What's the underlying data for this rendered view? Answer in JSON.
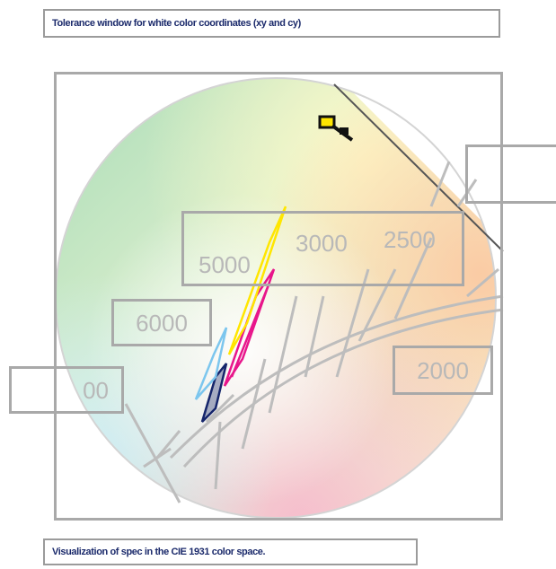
{
  "captions": {
    "top": "Tolerance window for white color coordinates (xy and cy)",
    "bottom": "Visualization of spec in the CIE 1931 color space."
  },
  "cct_labels": {
    "t5000": "5000",
    "t3000": "3000",
    "t2500": "2500",
    "t6000": "6000",
    "t2000": "2000",
    "t_partial": "00"
  },
  "colors": {
    "frame": "#a9a9a9",
    "caption_text": "#1b2a6b",
    "window_yellow": "#ffe600",
    "window_magenta": "#e8168b",
    "window_cyan": "#7cc6ee",
    "window_navy": "#15256b",
    "isotemp_lines": "#bdbdbd"
  }
}
